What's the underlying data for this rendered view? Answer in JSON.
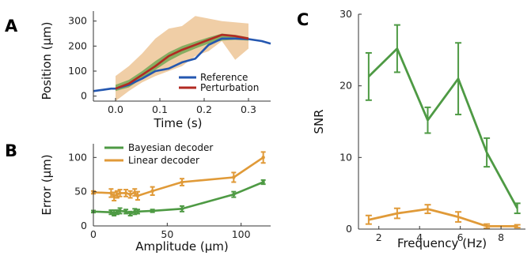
{
  "panel_labels": {
    "a": "A",
    "b": "B",
    "c": "C"
  },
  "colors": {
    "reference": "#2457b0",
    "perturbation": "#b22a22",
    "band_orange": "#e6ad6a",
    "band_green": "#5aa046",
    "bayesian": "#4e9a44",
    "linear": "#e09a38"
  },
  "chart_data": [
    {
      "type": "line",
      "panel": "A",
      "xlabel": "Time (s)",
      "ylabel": "Position (μm)",
      "xlim": [
        -0.05,
        0.35
      ],
      "ylim": [
        -20,
        340
      ],
      "xticks": [
        0,
        0.1,
        0.2,
        0.3
      ],
      "xtick_labels": [
        "0.0",
        "0.1",
        "0.2",
        "0.3"
      ],
      "yticks": [
        0,
        100,
        200,
        300
      ],
      "ytick_labels": [
        "0",
        "100",
        "200",
        "300"
      ],
      "legend": {
        "position": "bottom-right",
        "entries": [
          "Reference",
          "Perturbation"
        ]
      },
      "series": [
        {
          "name": "Reference",
          "color": "#2457b0",
          "x": [
            -0.05,
            -0.03,
            -0.01,
            0.0,
            0.03,
            0.06,
            0.09,
            0.12,
            0.15,
            0.18,
            0.21,
            0.24,
            0.27,
            0.3,
            0.33,
            0.35
          ],
          "y": [
            20,
            25,
            30,
            30,
            45,
            70,
            100,
            110,
            135,
            150,
            205,
            230,
            230,
            228,
            220,
            210
          ]
        },
        {
          "name": "Perturbation",
          "color": "#b22a22",
          "x": [
            0.0,
            0.03,
            0.06,
            0.09,
            0.12,
            0.15,
            0.18,
            0.21,
            0.24,
            0.27,
            0.3
          ],
          "y": [
            30,
            50,
            85,
            120,
            160,
            185,
            205,
            225,
            245,
            240,
            230
          ]
        }
      ],
      "bands": [
        {
          "color": "#e6ad6a",
          "x": [
            0.0,
            0.03,
            0.06,
            0.09,
            0.12,
            0.15,
            0.18,
            0.21,
            0.24,
            0.27,
            0.3
          ],
          "upper": [
            80,
            120,
            170,
            230,
            270,
            280,
            320,
            310,
            300,
            295,
            290
          ],
          "lower": [
            -20,
            20,
            55,
            80,
            100,
            120,
            160,
            180,
            220,
            145,
            190
          ]
        },
        {
          "color": "#5aa046",
          "x": [
            0.0,
            0.03,
            0.06,
            0.09,
            0.12,
            0.15,
            0.18,
            0.21,
            0.24,
            0.27,
            0.3
          ],
          "upper": [
            45,
            65,
            100,
            140,
            175,
            200,
            218,
            235,
            250,
            245,
            235
          ],
          "lower": [
            20,
            35,
            70,
            105,
            140,
            168,
            190,
            210,
            222,
            225,
            222
          ]
        }
      ]
    },
    {
      "type": "line",
      "panel": "B",
      "xlabel": "Amplitude (μm)",
      "ylabel": "Error (μm)",
      "xlim": [
        0,
        120
      ],
      "ylim": [
        0,
        120
      ],
      "xticks": [
        0,
        50,
        100
      ],
      "xtick_labels": [
        "0",
        "50",
        "100"
      ],
      "yticks": [
        0,
        50,
        100
      ],
      "ytick_labels": [
        "0",
        "50",
        "100"
      ],
      "legend": {
        "position": "top-left",
        "entries": [
          "Bayesian decoder",
          "Linear decoder"
        ]
      },
      "series": [
        {
          "name": "Bayesian decoder",
          "color": "#4e9a44",
          "x": [
            0,
            12,
            14,
            16,
            18,
            22,
            25,
            28,
            30,
            40,
            60,
            95,
            115
          ],
          "y": [
            21,
            20,
            19,
            20,
            22,
            21,
            18,
            21,
            21,
            22,
            25,
            46,
            64
          ],
          "err": [
            1.5,
            3,
            4,
            3,
            4,
            3,
            3,
            4,
            3,
            2,
            4,
            4,
            3
          ]
        },
        {
          "name": "Linear decoder",
          "color": "#e09a38",
          "x": [
            0,
            12,
            14,
            16,
            18,
            22,
            25,
            28,
            30,
            40,
            60,
            95,
            115
          ],
          "y": [
            49,
            48,
            43,
            46,
            48,
            48,
            46,
            49,
            44,
            51,
            64,
            71,
            100
          ],
          "err": [
            2,
            6,
            6,
            5,
            5,
            5,
            5,
            5,
            6,
            6,
            5,
            7,
            8
          ]
        }
      ]
    },
    {
      "type": "line",
      "panel": "C",
      "xlabel": "Frequency (Hz)",
      "ylabel": "SNR",
      "xlim": [
        1,
        9.2
      ],
      "ylim": [
        0,
        30
      ],
      "xticks": [
        2,
        4,
        6,
        8
      ],
      "xtick_labels": [
        "2",
        "4",
        "6",
        "8"
      ],
      "yticks": [
        0,
        10,
        20,
        30
      ],
      "ytick_labels": [
        "0",
        "10",
        "20",
        "30"
      ],
      "series": [
        {
          "color": "#4e9a44",
          "x": [
            1.5,
            2.9,
            4.4,
            5.9,
            7.3,
            8.8
          ],
          "y": [
            21.3,
            25.2,
            15.2,
            21.0,
            10.7,
            2.9
          ],
          "err": [
            3.3,
            3.3,
            1.8,
            5.0,
            2.0,
            0.7
          ]
        },
        {
          "color": "#e09a38",
          "x": [
            1.5,
            2.9,
            4.4,
            5.9,
            7.3,
            8.8
          ],
          "y": [
            1.3,
            2.2,
            2.8,
            1.7,
            0.4,
            0.4
          ],
          "err": [
            0.6,
            0.7,
            0.6,
            0.7,
            0.3,
            0.2
          ]
        }
      ]
    }
  ]
}
